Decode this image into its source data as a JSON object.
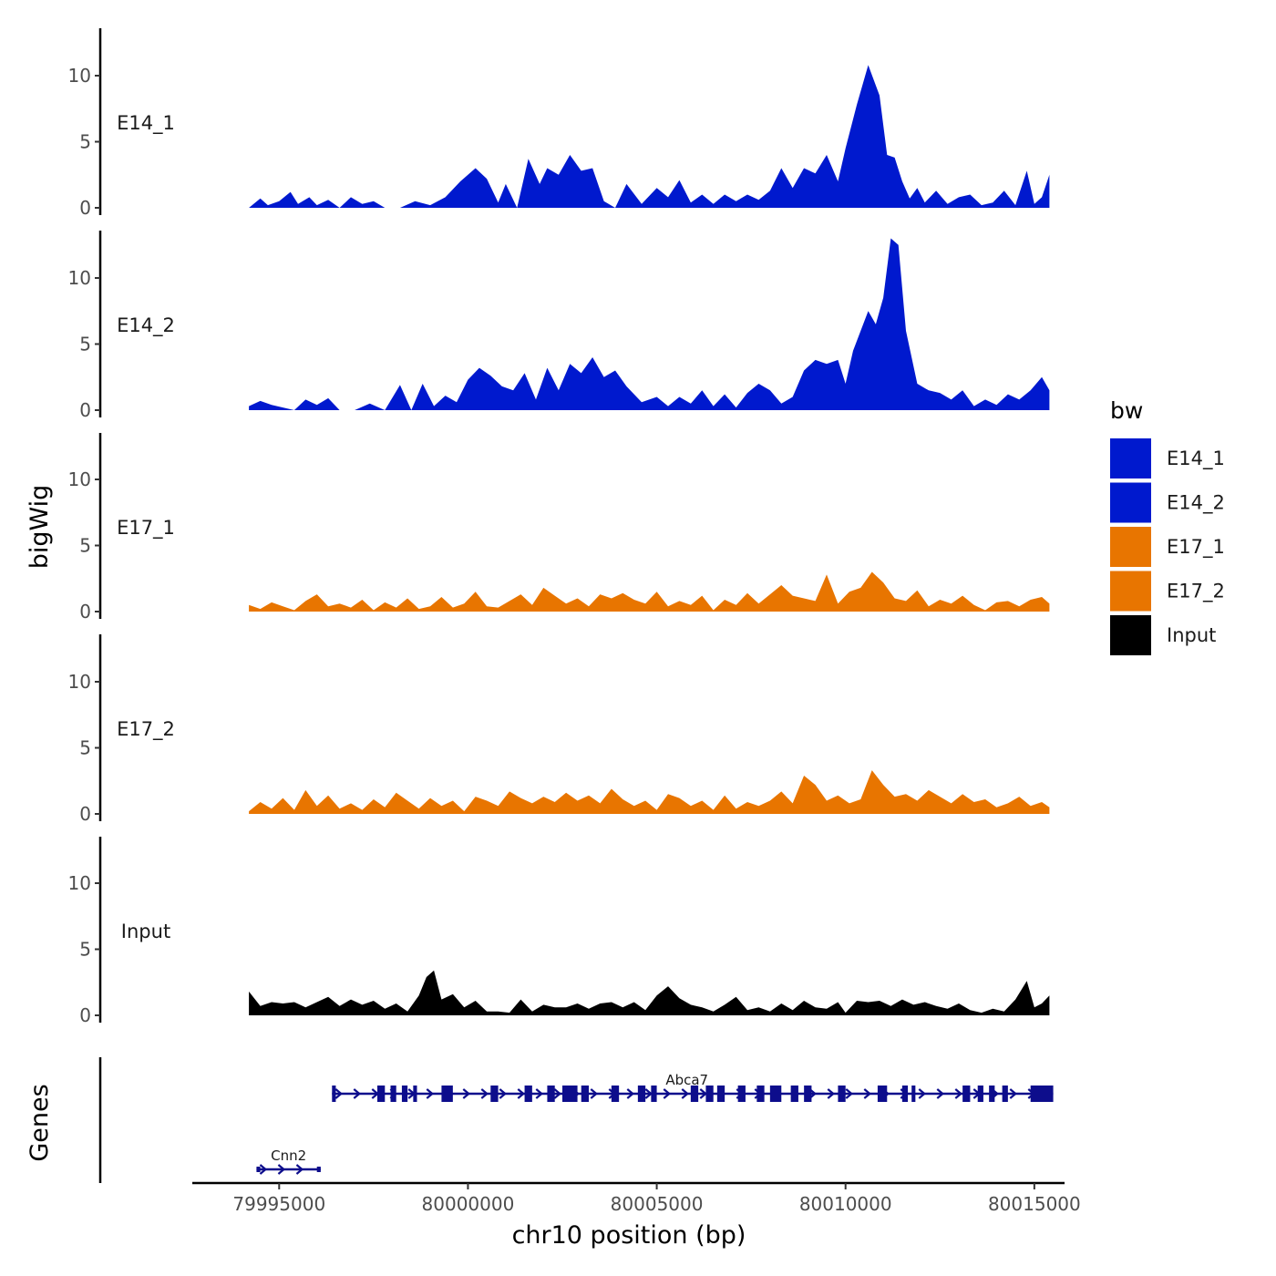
{
  "chart_data": {
    "type": "area",
    "xlabel": "chr10 position (bp)",
    "ylabel_tracks": "bigWig",
    "ylabel_genes": "Genes",
    "x_range": [
      79992700,
      80015800
    ],
    "xticks": [
      {
        "value": 79995000,
        "label": "79995000"
      },
      {
        "value": 80000000,
        "label": "80000000"
      },
      {
        "value": 80005000,
        "label": "80005000"
      },
      {
        "value": 80010000,
        "label": "80010000"
      },
      {
        "value": 80015000,
        "label": "80015000"
      }
    ],
    "y_range": [
      0,
      13.5
    ],
    "yticks": [
      {
        "value": 0,
        "label": "0"
      },
      {
        "value": 5,
        "label": "5"
      },
      {
        "value": 10,
        "label": "10"
      }
    ],
    "legend": {
      "title": "bw",
      "entries": [
        {
          "label": "E14_1",
          "color": "#0019CE"
        },
        {
          "label": "E14_2",
          "color": "#0019CE"
        },
        {
          "label": "E17_1",
          "color": "#E87500"
        },
        {
          "label": "E17_2",
          "color": "#E87500"
        },
        {
          "label": "Input",
          "color": "#000000"
        }
      ]
    },
    "series": [
      {
        "name": "E14_1",
        "color": "#0019CE",
        "x": [
          79994200,
          79994500,
          79994700,
          79995000,
          79995300,
          79995500,
          79995800,
          79996000,
          79996300,
          79996600,
          79996900,
          79997200,
          79997500,
          79997800,
          79998200,
          79998600,
          79999000,
          79999400,
          79999800,
          80000200,
          80000500,
          80000800,
          80001000,
          80001300,
          80001600,
          80001900,
          80002100,
          80002400,
          80002700,
          80003000,
          80003300,
          80003600,
          80003900,
          80004200,
          80004600,
          80005000,
          80005300,
          80005600,
          80005900,
          80006200,
          80006500,
          80006800,
          80007100,
          80007400,
          80007700,
          80008000,
          80008300,
          80008600,
          80008900,
          80009200,
          80009500,
          80009800,
          80010000,
          80010300,
          80010600,
          80010900,
          80011100,
          80011300,
          80011500,
          80011700,
          80011900,
          80012100,
          80012400,
          80012700,
          80013000,
          80013300,
          80013600,
          80013900,
          80014200,
          80014500,
          80014800,
          80015000,
          80015200,
          80015400
        ],
        "values": [
          0,
          0.7,
          0.2,
          0.5,
          1.2,
          0.3,
          0.8,
          0.2,
          0.6,
          0,
          0.8,
          0.3,
          0.5,
          0,
          0,
          0.5,
          0.2,
          0.8,
          2.0,
          3.0,
          2.2,
          0.4,
          1.8,
          0,
          3.7,
          1.8,
          3.0,
          2.5,
          4.0,
          2.8,
          3.0,
          0.5,
          0,
          1.8,
          0.3,
          1.5,
          0.8,
          2.1,
          0.4,
          1.0,
          0.3,
          1.0,
          0.5,
          1.0,
          0.6,
          1.3,
          3.0,
          1.5,
          3.0,
          2.6,
          4.0,
          2.0,
          4.5,
          7.8,
          10.8,
          8.5,
          4.0,
          3.8,
          2.0,
          0.7,
          1.5,
          0.4,
          1.3,
          0.3,
          0.8,
          1.0,
          0.2,
          0.4,
          1.3,
          0.2,
          2.8,
          0.3,
          0.8,
          2.5
        ]
      },
      {
        "name": "E14_2",
        "color": "#0019CE",
        "x": [
          79994200,
          79994500,
          79994800,
          79995100,
          79995400,
          79995700,
          79996000,
          79996300,
          79996600,
          79997000,
          79997400,
          79997800,
          79998200,
          79998500,
          79998800,
          79999100,
          79999400,
          79999700,
          80000000,
          80000300,
          80000600,
          80000900,
          80001200,
          80001500,
          80001800,
          80002100,
          80002400,
          80002700,
          80003000,
          80003300,
          80003600,
          80003900,
          80004200,
          80004600,
          80005000,
          80005300,
          80005600,
          80005900,
          80006200,
          80006500,
          80006800,
          80007100,
          80007400,
          80007700,
          80008000,
          80008300,
          80008600,
          80008900,
          80009200,
          80009500,
          80009800,
          80010000,
          80010200,
          80010400,
          80010600,
          80010800,
          80011000,
          80011200,
          80011400,
          80011600,
          80011900,
          80012200,
          80012500,
          80012800,
          80013100,
          80013400,
          80013700,
          80014000,
          80014300,
          80014600,
          80014900,
          80015200,
          80015400
        ],
        "values": [
          0.3,
          0.7,
          0.4,
          0.2,
          0,
          0.8,
          0.4,
          0.9,
          0,
          0,
          0.5,
          0,
          1.9,
          0,
          2.0,
          0.3,
          1.1,
          0.6,
          2.3,
          3.2,
          2.6,
          1.8,
          1.5,
          2.8,
          0.8,
          3.2,
          1.5,
          3.5,
          2.8,
          4.0,
          2.5,
          3.0,
          1.8,
          0.6,
          1.0,
          0.3,
          1.0,
          0.5,
          1.5,
          0.3,
          1.2,
          0.2,
          1.3,
          2.0,
          1.5,
          0.5,
          1.0,
          3.0,
          3.8,
          3.5,
          3.8,
          2.0,
          4.5,
          6.0,
          7.5,
          6.5,
          8.5,
          13.0,
          12.5,
          6.0,
          2.0,
          1.5,
          1.3,
          0.8,
          1.5,
          0.3,
          0.8,
          0.4,
          1.2,
          0.8,
          1.5,
          2.5,
          1.5
        ]
      },
      {
        "name": "E17_1",
        "color": "#E87500",
        "x": [
          79994200,
          79994500,
          79994800,
          79995100,
          79995400,
          79995700,
          79996000,
          79996300,
          79996600,
          79996900,
          79997200,
          79997500,
          79997800,
          79998100,
          79998400,
          79998700,
          79999000,
          79999300,
          79999600,
          79999900,
          80000200,
          80000500,
          80000800,
          80001100,
          80001400,
          80001700,
          80002000,
          80002300,
          80002600,
          80002900,
          80003200,
          80003500,
          80003800,
          80004100,
          80004400,
          80004700,
          80005000,
          80005300,
          80005600,
          80005900,
          80006200,
          80006500,
          80006800,
          80007100,
          80007400,
          80007700,
          80008000,
          80008300,
          80008600,
          80008900,
          80009200,
          80009500,
          80009800,
          80010100,
          80010400,
          80010700,
          80011000,
          80011300,
          80011600,
          80011900,
          80012200,
          80012500,
          80012800,
          80013100,
          80013400,
          80013700,
          80014000,
          80014300,
          80014600,
          80014900,
          80015200,
          80015400
        ],
        "values": [
          0.5,
          0.2,
          0.7,
          0.4,
          0.1,
          0.8,
          1.3,
          0.4,
          0.6,
          0.3,
          0.9,
          0.1,
          0.7,
          0.3,
          1.0,
          0.2,
          0.4,
          1.1,
          0.3,
          0.6,
          1.5,
          0.4,
          0.3,
          0.8,
          1.3,
          0.5,
          1.8,
          1.2,
          0.6,
          1.0,
          0.4,
          1.3,
          1.0,
          1.4,
          0.9,
          0.6,
          1.5,
          0.4,
          0.8,
          0.5,
          1.2,
          0.1,
          0.9,
          0.5,
          1.4,
          0.6,
          1.3,
          2.0,
          1.2,
          1.0,
          0.8,
          2.8,
          0.6,
          1.5,
          1.8,
          3.0,
          2.2,
          1.0,
          0.8,
          1.6,
          0.4,
          0.9,
          0.6,
          1.2,
          0.5,
          0.1,
          0.7,
          0.8,
          0.4,
          0.9,
          1.1,
          0.6
        ]
      },
      {
        "name": "E17_2",
        "color": "#E87500",
        "x": [
          79994200,
          79994500,
          79994800,
          79995100,
          79995400,
          79995700,
          79996000,
          79996300,
          79996600,
          79996900,
          79997200,
          79997500,
          79997800,
          79998100,
          79998400,
          79998700,
          79999000,
          79999300,
          79999600,
          79999900,
          80000200,
          80000500,
          80000800,
          80001100,
          80001400,
          80001700,
          80002000,
          80002300,
          80002600,
          80002900,
          80003200,
          80003500,
          80003800,
          80004100,
          80004400,
          80004700,
          80005000,
          80005300,
          80005600,
          80005900,
          80006200,
          80006500,
          80006800,
          80007100,
          80007400,
          80007700,
          80008000,
          80008300,
          80008600,
          80008900,
          80009200,
          80009500,
          80009800,
          80010100,
          80010400,
          80010700,
          80011000,
          80011300,
          80011600,
          80011900,
          80012200,
          80012500,
          80012800,
          80013100,
          80013400,
          80013700,
          80014000,
          80014300,
          80014600,
          80014900,
          80015200,
          80015400
        ],
        "values": [
          0.2,
          0.9,
          0.4,
          1.2,
          0.3,
          1.8,
          0.6,
          1.4,
          0.4,
          0.8,
          0.3,
          1.1,
          0.5,
          1.6,
          1.0,
          0.4,
          1.2,
          0.6,
          1.0,
          0.2,
          1.3,
          1.0,
          0.6,
          1.7,
          1.2,
          0.8,
          1.3,
          0.9,
          1.6,
          1.0,
          1.4,
          0.8,
          1.9,
          1.1,
          0.6,
          1.0,
          0.3,
          1.5,
          1.2,
          0.6,
          1.0,
          0.3,
          1.4,
          0.4,
          0.9,
          0.6,
          1.0,
          1.7,
          0.8,
          2.9,
          2.2,
          1.0,
          1.4,
          0.8,
          1.1,
          3.3,
          2.2,
          1.3,
          1.5,
          1.0,
          1.8,
          1.3,
          0.8,
          1.5,
          0.9,
          1.1,
          0.5,
          0.8,
          1.3,
          0.6,
          0.9,
          0.5
        ]
      },
      {
        "name": "Input",
        "color": "#000000",
        "x": [
          79994200,
          79994500,
          79994800,
          79995100,
          79995400,
          79995700,
          79996000,
          79996300,
          79996600,
          79996900,
          79997200,
          79997500,
          79997800,
          79998100,
          79998400,
          79998700,
          79998900,
          79999100,
          79999300,
          79999600,
          79999900,
          80000200,
          80000500,
          80000800,
          80001100,
          80001400,
          80001700,
          80002000,
          80002300,
          80002600,
          80002900,
          80003200,
          80003500,
          80003800,
          80004100,
          80004400,
          80004700,
          80005000,
          80005300,
          80005600,
          80005900,
          80006200,
          80006500,
          80006800,
          80007100,
          80007400,
          80007700,
          80008000,
          80008300,
          80008600,
          80008900,
          80009200,
          80009500,
          80009800,
          80010000,
          80010300,
          80010600,
          80010900,
          80011200,
          80011500,
          80011800,
          80012100,
          80012400,
          80012700,
          80013000,
          80013300,
          80013600,
          80013900,
          80014200,
          80014500,
          80014800,
          80015000,
          80015200,
          80015400
        ],
        "values": [
          1.8,
          0.7,
          1.0,
          0.9,
          1.0,
          0.6,
          1.0,
          1.4,
          0.7,
          1.2,
          0.8,
          1.1,
          0.5,
          0.9,
          0.3,
          1.5,
          2.9,
          3.4,
          1.2,
          1.6,
          0.6,
          1.1,
          0.3,
          0.3,
          0.2,
          1.2,
          0.3,
          0.8,
          0.6,
          0.6,
          0.9,
          0.5,
          0.9,
          1.0,
          0.6,
          1.0,
          0.4,
          1.5,
          2.2,
          1.3,
          0.8,
          0.6,
          0.3,
          0.8,
          1.4,
          0.4,
          0.6,
          0.3,
          0.9,
          0.4,
          1.1,
          0.6,
          0.5,
          1.0,
          0.2,
          1.1,
          1.0,
          1.1,
          0.7,
          1.2,
          0.8,
          1.0,
          0.7,
          0.5,
          0.9,
          0.4,
          0.2,
          0.5,
          0.3,
          1.2,
          2.6,
          0.6,
          0.9,
          1.5
        ]
      }
    ],
    "genes": [
      {
        "name": "Cnn2",
        "strand": "+",
        "start": 79994400,
        "end": 79996100,
        "exons": [
          [
            79994400,
            79994500
          ],
          [
            79996000,
            79996100
          ]
        ]
      },
      {
        "name": "Abca7",
        "strand": "+",
        "start": 79996400,
        "end": 80015500,
        "exons": [
          [
            79996400,
            79996500
          ],
          [
            79997600,
            79997800
          ],
          [
            79997950,
            79998100
          ],
          [
            79998250,
            79998400
          ],
          [
            79998550,
            79998650
          ],
          [
            79999300,
            79999600
          ],
          [
            80000600,
            80000800
          ],
          [
            80001500,
            80001700
          ],
          [
            80002100,
            80002300
          ],
          [
            80002500,
            80002900
          ],
          [
            80003000,
            80003200
          ],
          [
            80003800,
            80004000
          ],
          [
            80004500,
            80004700
          ],
          [
            80004850,
            80005000
          ],
          [
            80005900,
            80006100
          ],
          [
            80006300,
            80006500
          ],
          [
            80006600,
            80006800
          ],
          [
            80007150,
            80007350
          ],
          [
            80007650,
            80007850
          ],
          [
            80008000,
            80008300
          ],
          [
            80008550,
            80008750
          ],
          [
            80008900,
            80009100
          ],
          [
            80009800,
            80010000
          ],
          [
            80010850,
            80011100
          ],
          [
            80011500,
            80011650
          ],
          [
            80011750,
            80011850
          ],
          [
            80013100,
            80013300
          ],
          [
            80013500,
            80013650
          ],
          [
            80013800,
            80013950
          ],
          [
            80014150,
            80014300
          ],
          [
            80014900,
            80015500
          ]
        ]
      }
    ]
  }
}
